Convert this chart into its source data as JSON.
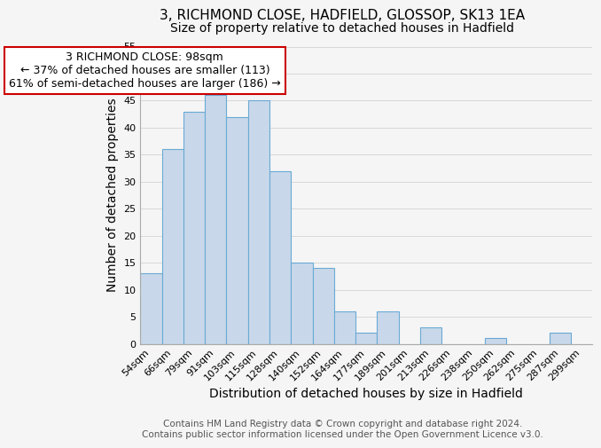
{
  "title": "3, RICHMOND CLOSE, HADFIELD, GLOSSOP, SK13 1EA",
  "subtitle": "Size of property relative to detached houses in Hadfield",
  "xlabel": "Distribution of detached houses by size in Hadfield",
  "ylabel": "Number of detached properties",
  "footer_lines": [
    "Contains HM Land Registry data © Crown copyright and database right 2024.",
    "Contains public sector information licensed under the Open Government Licence v3.0."
  ],
  "bin_labels": [
    "54sqm",
    "66sqm",
    "79sqm",
    "91sqm",
    "103sqm",
    "115sqm",
    "128sqm",
    "140sqm",
    "152sqm",
    "164sqm",
    "177sqm",
    "189sqm",
    "201sqm",
    "213sqm",
    "226sqm",
    "238sqm",
    "250sqm",
    "262sqm",
    "275sqm",
    "287sqm",
    "299sqm"
  ],
  "bar_heights": [
    13,
    36,
    43,
    46,
    42,
    45,
    32,
    15,
    14,
    6,
    2,
    6,
    0,
    3,
    0,
    0,
    1,
    0,
    0,
    2,
    0
  ],
  "bar_color": "#c8d8ea",
  "bar_edge_color": "#6aaad4",
  "annotation_box_text": "3 RICHMOND CLOSE: 98sqm\n← 37% of detached houses are smaller (113)\n61% of semi-detached houses are larger (186) →",
  "annotation_box_edge_color": "#cc0000",
  "annotation_box_text_color": "#000000",
  "ylim": [
    0,
    55
  ],
  "yticks": [
    0,
    5,
    10,
    15,
    20,
    25,
    30,
    35,
    40,
    45,
    50,
    55
  ],
  "background_color": "#f5f5f5",
  "grid_color": "#d8d8d8",
  "title_fontsize": 11,
  "subtitle_fontsize": 10,
  "axis_label_fontsize": 10,
  "tick_fontsize": 8,
  "annotation_fontsize": 9,
  "footer_fontsize": 7.5
}
